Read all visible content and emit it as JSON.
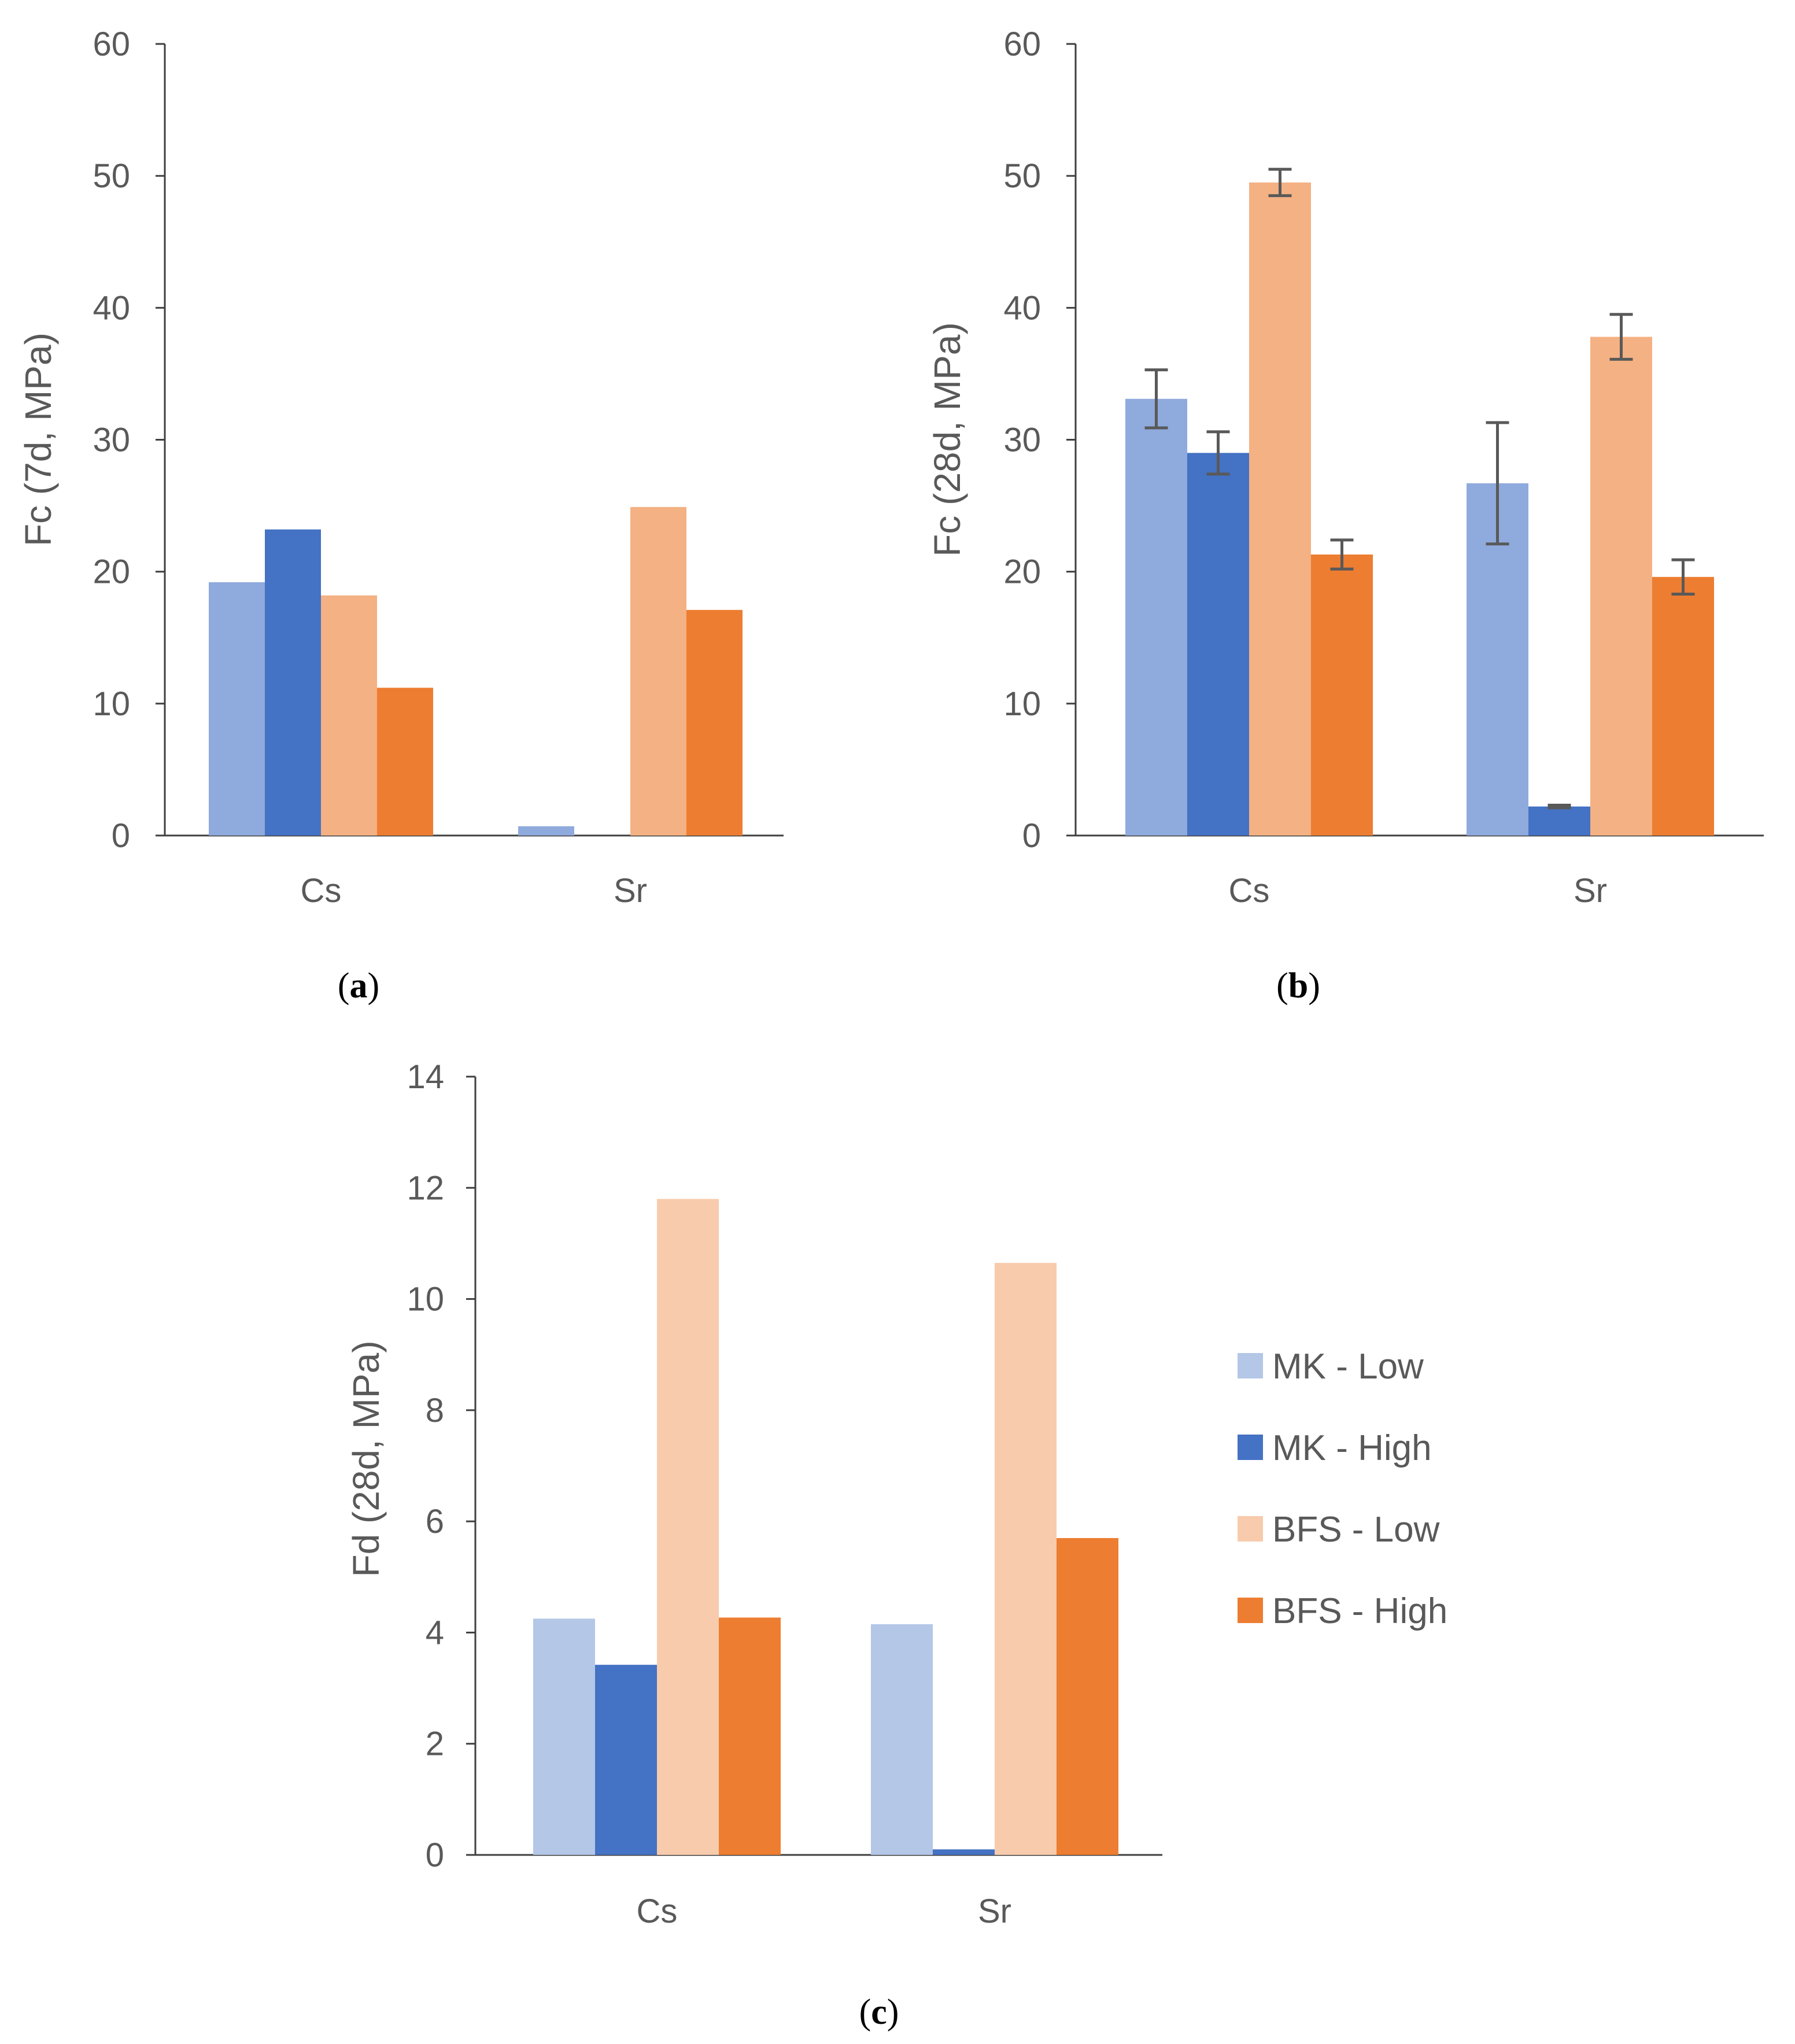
{
  "chart_data": [
    {
      "id": "a",
      "type": "bar",
      "panel_label": "a",
      "ylabel": "Fc (7d, MPa)",
      "xlabel": "",
      "ylim": [
        0,
        60
      ],
      "yticks": [
        0,
        10,
        20,
        30,
        40,
        50,
        60
      ],
      "categories": [
        "Cs",
        "Sr"
      ],
      "series": [
        {
          "name": "MK - Low",
          "color": "#8faadc",
          "values": [
            19.2,
            0.7
          ]
        },
        {
          "name": "MK - High",
          "color": "#4472c4",
          "values": [
            23.2,
            0
          ]
        },
        {
          "name": "BFS - Low",
          "color": "#f4b183",
          "values": [
            18.2,
            24.9
          ]
        },
        {
          "name": "BFS - High",
          "color": "#ed7d31",
          "values": [
            11.2,
            17.1
          ]
        }
      ]
    },
    {
      "id": "b",
      "type": "bar",
      "panel_label": "b",
      "ylabel": "Fc (28d, MPa)",
      "xlabel": "",
      "ylim": [
        0,
        60
      ],
      "yticks": [
        0,
        10,
        20,
        30,
        40,
        50,
        60
      ],
      "categories": [
        "Cs",
        "Sr"
      ],
      "series": [
        {
          "name": "MK - Low",
          "color": "#8faadc",
          "values": [
            33.1,
            26.7
          ],
          "errors": [
            2.2,
            4.6
          ]
        },
        {
          "name": "MK - High",
          "color": "#4472c4",
          "values": [
            29.0,
            2.2
          ],
          "errors": [
            1.6,
            0.1
          ]
        },
        {
          "name": "BFS - Low",
          "color": "#f4b183",
          "values": [
            49.5,
            37.8
          ],
          "errors": [
            1.0,
            1.7
          ]
        },
        {
          "name": "BFS - High",
          "color": "#ed7d31",
          "values": [
            21.3,
            19.6
          ],
          "errors": [
            1.1,
            1.3
          ]
        }
      ]
    },
    {
      "id": "c",
      "type": "bar",
      "panel_label": "c",
      "ylabel": "Fd (28d, MPa)",
      "xlabel": "",
      "ylim": [
        0,
        14
      ],
      "yticks": [
        0,
        2,
        4,
        6,
        8,
        10,
        12,
        14
      ],
      "categories": [
        "Cs",
        "Sr"
      ],
      "series": [
        {
          "name": "MK - Low",
          "color": "#b4c7e7",
          "values": [
            4.25,
            4.15
          ]
        },
        {
          "name": "MK - High",
          "color": "#4472c4",
          "values": [
            3.42,
            0.1
          ]
        },
        {
          "name": "BFS - Low",
          "color": "#f8cbad",
          "values": [
            11.8,
            10.65
          ]
        },
        {
          "name": "BFS - High",
          "color": "#ed7d31",
          "values": [
            4.27,
            5.7
          ]
        }
      ]
    }
  ],
  "legend": {
    "position": "right-of-panel-c",
    "items": [
      {
        "label": "MK - Low",
        "color": "#b4c7e7"
      },
      {
        "label": "MK - High",
        "color": "#4472c4"
      },
      {
        "label": "BFS - Low",
        "color": "#f8cbad"
      },
      {
        "label": "BFS - High",
        "color": "#ed7d31"
      }
    ]
  }
}
